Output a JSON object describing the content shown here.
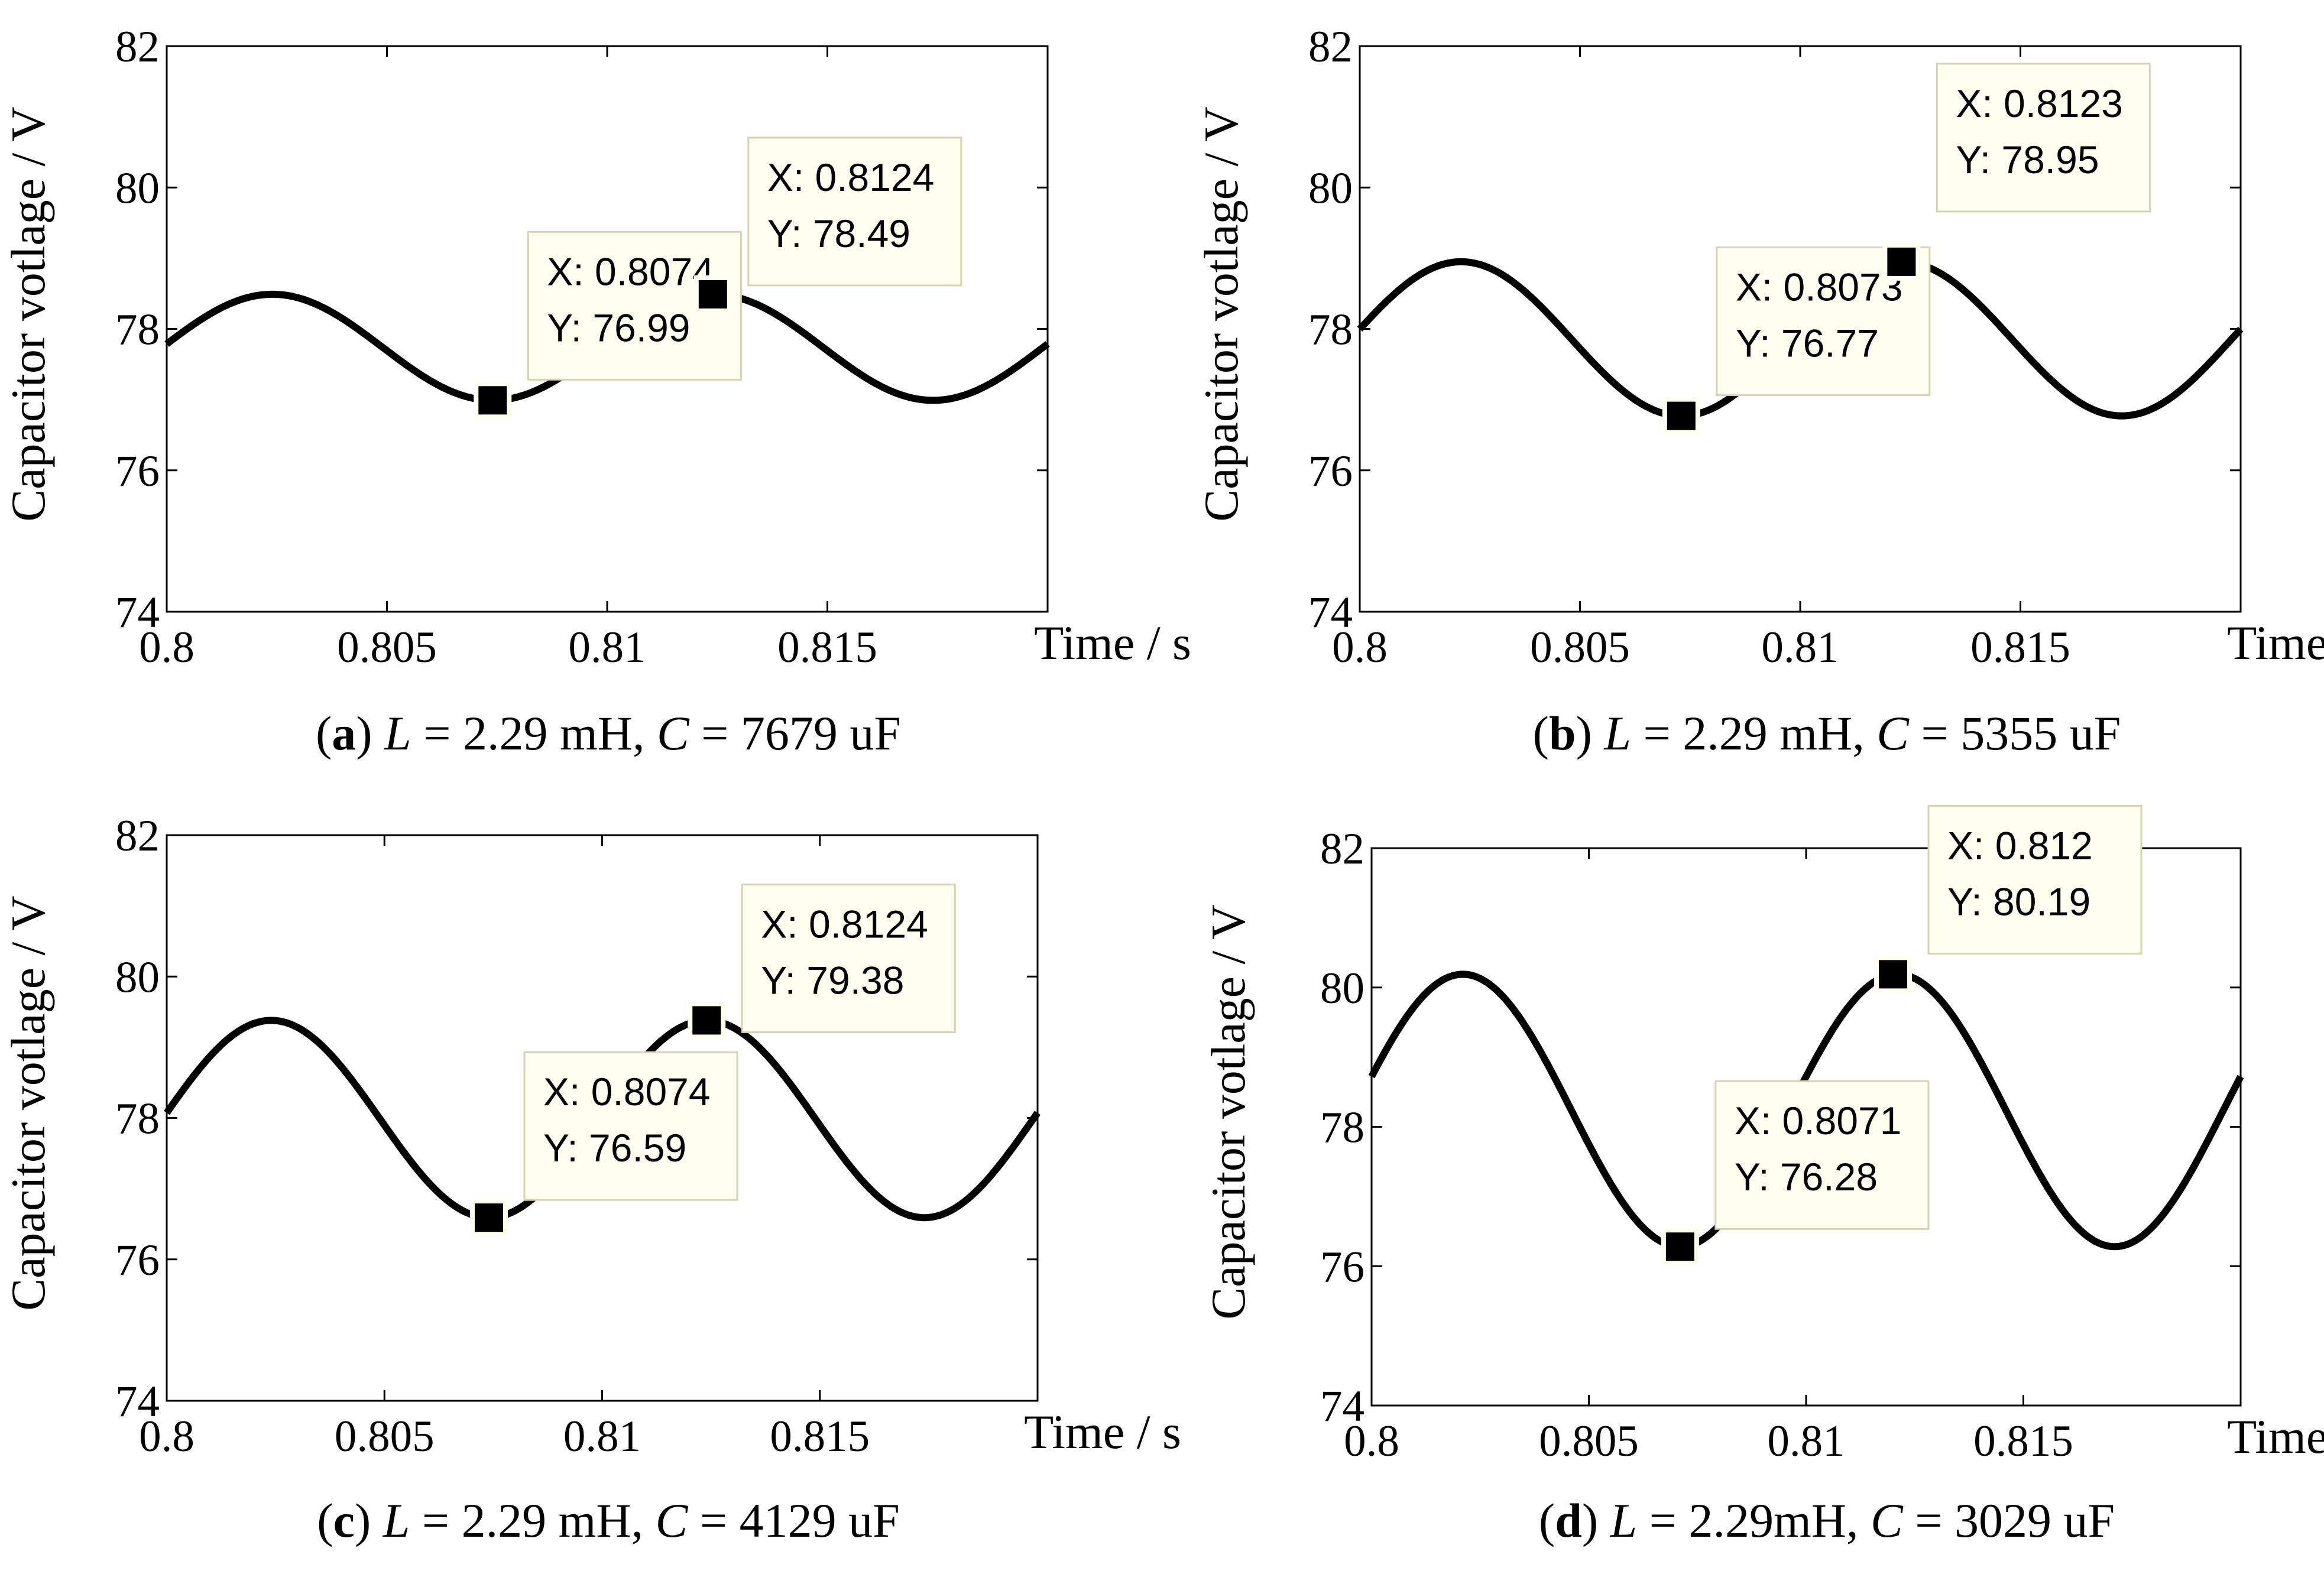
{
  "chart_data": [
    {
      "type": "line",
      "caption": {
        "letter": "a",
        "text": " = 2.29 mH, ",
        "L": "L",
        "C": "C",
        "cval": " = 7679 uF"
      },
      "ylabel": "Capacitor votlage / V",
      "xlabel": "Time / s",
      "xlim": [
        0.8,
        0.82
      ],
      "ylim": [
        74,
        82
      ],
      "xticks": [
        "0.8",
        "0.805",
        "0.81",
        "0.815"
      ],
      "yticks": [
        "74",
        "76",
        "78",
        "80",
        "82"
      ],
      "series": {
        "mean": 77.74,
        "amp": 0.75,
        "period": 0.01,
        "phase": 0.0074
      },
      "datatips": [
        {
          "x_text": "X: 0.8074",
          "y_text": "Y: 76.99",
          "x": 0.8074,
          "y": 76.99
        },
        {
          "x_text": "X: 0.8124",
          "y_text": "Y: 78.49",
          "x": 0.8124,
          "y": 78.49
        }
      ]
    },
    {
      "type": "line",
      "caption": {
        "letter": "b",
        "text": " = 2.29 mH, ",
        "L": "L",
        "C": "C",
        "cval": " = 5355 uF"
      },
      "ylabel": "Capacitor votlage / V",
      "xlabel": "Time / s",
      "xlim": [
        0.8,
        0.82
      ],
      "ylim": [
        74,
        82
      ],
      "xticks": [
        "0.8",
        "0.805",
        "0.81",
        "0.815"
      ],
      "yticks": [
        "74",
        "76",
        "78",
        "80",
        "82"
      ],
      "series": {
        "mean": 77.86,
        "amp": 1.09,
        "period": 0.01,
        "phase": 0.0073
      },
      "datatips": [
        {
          "x_text": "X: 0.8073",
          "y_text": "Y: 76.77",
          "x": 0.8073,
          "y": 76.77
        },
        {
          "x_text": "X: 0.8123",
          "y_text": "Y: 78.95",
          "x": 0.8123,
          "y": 78.95
        }
      ]
    },
    {
      "type": "line",
      "caption": {
        "letter": "c",
        "text": " = 2.29 mH, ",
        "L": "L",
        "C": "C",
        "cval": " = 4129 uF"
      },
      "ylabel": "Capacitor votlage / V",
      "xlabel": "Time / s",
      "xlim": [
        0.8,
        0.82
      ],
      "ylim": [
        74,
        82
      ],
      "xticks": [
        "0.8",
        "0.805",
        "0.81",
        "0.815"
      ],
      "yticks": [
        "74",
        "76",
        "78",
        "80",
        "82"
      ],
      "series": {
        "mean": 77.985,
        "amp": 1.395,
        "period": 0.01,
        "phase": 0.0074
      },
      "datatips": [
        {
          "x_text": "X: 0.8074",
          "y_text": "Y: 76.59",
          "x": 0.8074,
          "y": 76.59
        },
        {
          "x_text": "X: 0.8124",
          "y_text": "Y: 79.38",
          "x": 0.8124,
          "y": 79.38
        }
      ]
    },
    {
      "type": "line",
      "caption": {
        "letter": "d",
        "text": " = 2.29mH, ",
        "L": "L",
        "C": "C",
        "cval": " = 3029 uF"
      },
      "ylabel": "Capacitor votlage / V",
      "xlabel": "Time / s",
      "xlim": [
        0.8,
        0.82
      ],
      "ylim": [
        74,
        82
      ],
      "xticks": [
        "0.8",
        "0.805",
        "0.81",
        "0.815"
      ],
      "yticks": [
        "74",
        "76",
        "78",
        "80",
        "82"
      ],
      "series": {
        "mean": 78.235,
        "amp": 1.955,
        "period": 0.01,
        "phase": 0.0071
      },
      "datatips": [
        {
          "x_text": "X: 0.8071",
          "y_text": "Y: 76.28",
          "x": 0.8071,
          "y": 76.28
        },
        {
          "x_text": "X: 0.812",
          "y_text": "Y: 80.19",
          "x": 0.812,
          "y": 80.19
        }
      ]
    }
  ],
  "colors": {
    "line": "#000000",
    "tip_fill": "#fffff0",
    "tip_border": "#d4d4b0",
    "axes": "#000000"
  }
}
